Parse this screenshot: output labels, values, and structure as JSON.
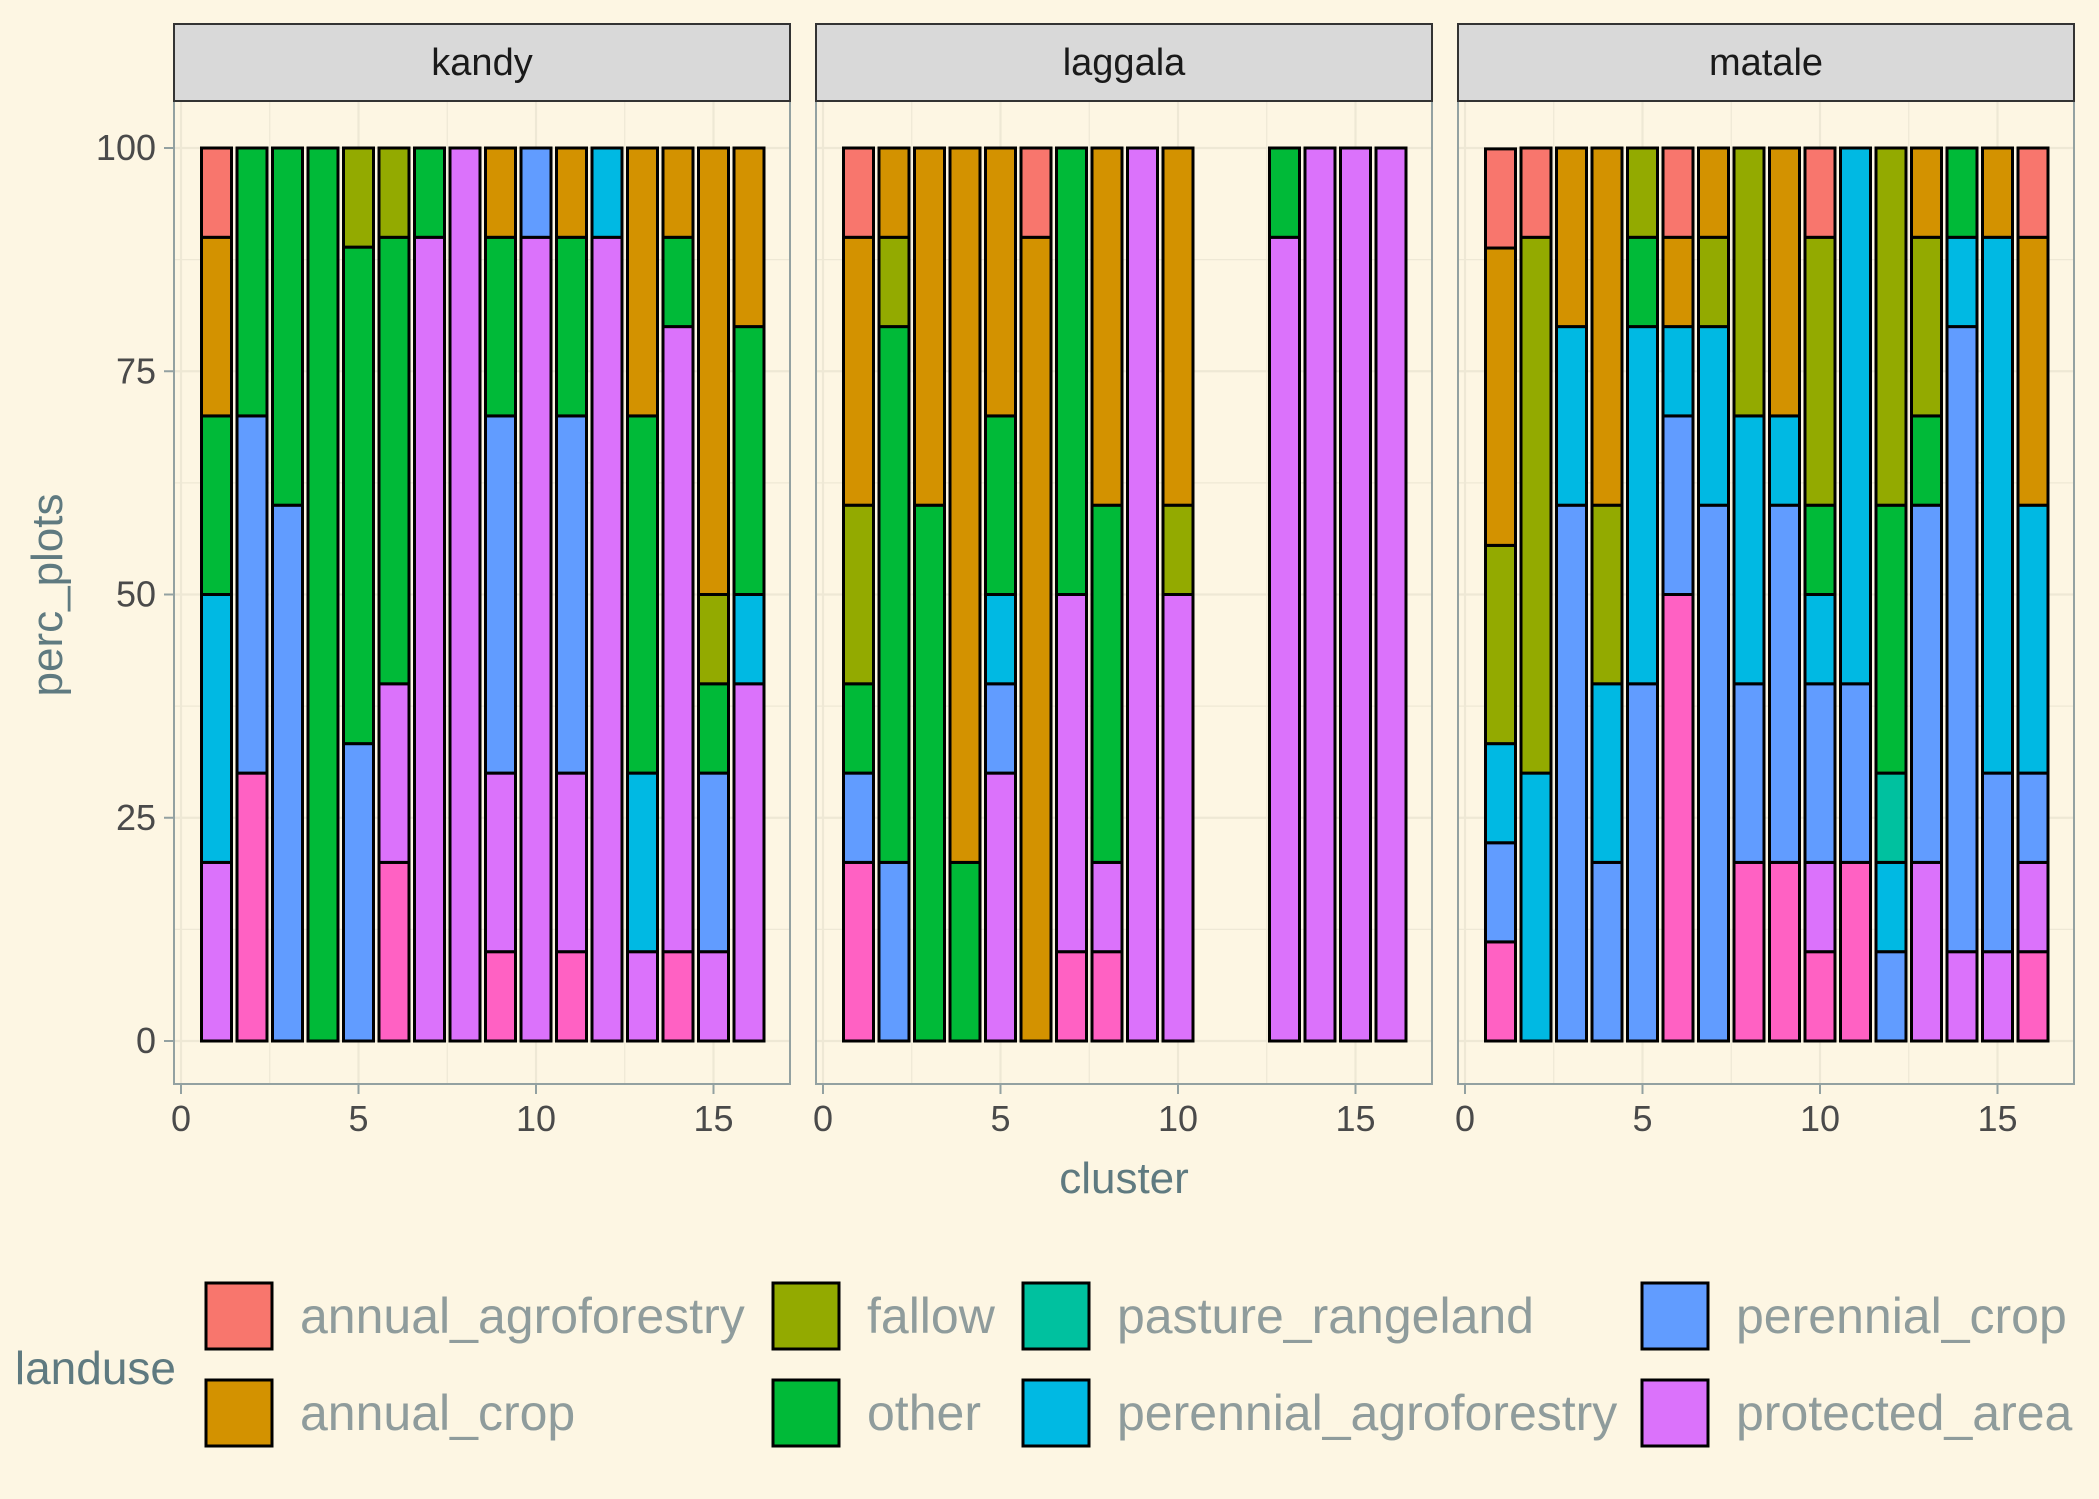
{
  "chart_data": {
    "type": "bar",
    "stacked": true,
    "position": "fill",
    "xlabel": "cluster",
    "ylabel": "perc_plots",
    "ylim": [
      0,
      100
    ],
    "yticks": [
      0,
      25,
      50,
      75,
      100
    ],
    "xticks": [
      0,
      5,
      10,
      15
    ],
    "xlim": [
      0,
      17
    ],
    "grid": true,
    "legend": {
      "title": "landuse",
      "placement": "bottom",
      "entries": [
        {
          "name": "annual_agroforestry",
          "color": "#F8766D"
        },
        {
          "name": "annual_crop",
          "color": "#D39200"
        },
        {
          "name": "fallow",
          "color": "#93AA00"
        },
        {
          "name": "other",
          "color": "#00BA38"
        },
        {
          "name": "pasture_rangeland",
          "color": "#00C19F"
        },
        {
          "name": "perennial_agroforestry",
          "color": "#00B9E3"
        },
        {
          "name": "perennial_crop",
          "color": "#619CFF"
        },
        {
          "name": "protected_area",
          "color": "#DB72FB"
        }
      ],
      "extra_fill_color": "#FF61C3"
    },
    "stack_order_bottom_to_top": [
      "pink",
      "protected_area",
      "perennial_crop",
      "perennial_agroforestry",
      "pasture_rangeland",
      "other",
      "fallow",
      "annual_crop",
      "annual_agroforestry"
    ],
    "panels": [
      {
        "name": "kandy",
        "bars": [
          {
            "x": 1,
            "pink": 0,
            "protected_area": 20,
            "perennial_agroforestry": 30,
            "other": 20,
            "annual_crop": 20,
            "annual_agroforestry": 10
          },
          {
            "x": 2,
            "pink": 30,
            "perennial_crop": 40,
            "other": 30
          },
          {
            "x": 3,
            "perennial_crop": 60,
            "other": 40
          },
          {
            "x": 4,
            "other": 100
          },
          {
            "x": 5,
            "perennial_crop": 33.3,
            "other": 55.6,
            "fallow": 11.1
          },
          {
            "x": 6,
            "pink": 20,
            "protected_area": 20,
            "other": 50,
            "fallow": 10
          },
          {
            "x": 7,
            "protected_area": 90,
            "other": 10
          },
          {
            "x": 8,
            "protected_area": 100
          },
          {
            "x": 9,
            "pink": 10,
            "protected_area": 20,
            "perennial_crop": 40,
            "other": 20,
            "annual_crop": 10
          },
          {
            "x": 10,
            "protected_area": 90,
            "perennial_crop": 10
          },
          {
            "x": 11,
            "pink": 10,
            "protected_area": 20,
            "perennial_crop": 40,
            "other": 20,
            "annual_crop": 10
          },
          {
            "x": 12,
            "protected_area": 90,
            "perennial_agroforestry": 10
          },
          {
            "x": 13,
            "protected_area": 10,
            "perennial_agroforestry": 20,
            "other": 40,
            "annual_crop": 30
          },
          {
            "x": 14,
            "pink": 10,
            "protected_area": 70,
            "other": 10,
            "annual_crop": 10
          },
          {
            "x": 15,
            "protected_area": 10,
            "perennial_crop": 20,
            "other": 10,
            "fallow": 10,
            "annual_crop": 50
          },
          {
            "x": 16,
            "protected_area": 40,
            "perennial_agroforestry": 10,
            "other": 30,
            "annual_crop": 20
          }
        ]
      },
      {
        "name": "laggala",
        "bars": [
          {
            "x": 1,
            "pink": 20,
            "perennial_crop": 10,
            "other": 10,
            "fallow": 20,
            "annual_crop": 30,
            "annual_agroforestry": 10
          },
          {
            "x": 2,
            "perennial_crop": 20,
            "other": 60,
            "fallow": 10,
            "annual_crop": 10
          },
          {
            "x": 3,
            "other": 60,
            "annual_crop": 40
          },
          {
            "x": 4,
            "other": 20,
            "annual_crop": 80
          },
          {
            "x": 5,
            "protected_area": 30,
            "perennial_crop": 10,
            "perennial_agroforestry": 10,
            "other": 20,
            "annual_crop": 30
          },
          {
            "x": 6,
            "annual_crop": 90,
            "annual_agroforestry": 10
          },
          {
            "x": 7,
            "pink": 10,
            "protected_area": 40,
            "other": 50
          },
          {
            "x": 8,
            "pink": 10,
            "protected_area": 10,
            "other": 40,
            "annual_crop": 40
          },
          {
            "x": 9,
            "protected_area": 100
          },
          {
            "x": 10,
            "protected_area": 50,
            "fallow": 10,
            "annual_crop": 40
          },
          {
            "x": 13,
            "protected_area": 90,
            "other": 10
          },
          {
            "x": 14,
            "protected_area": 100
          },
          {
            "x": 15,
            "protected_area": 100
          },
          {
            "x": 16,
            "protected_area": 100
          }
        ]
      },
      {
        "name": "matale",
        "bars": [
          {
            "x": 1,
            "pink": 11.1,
            "perennial_crop": 11.1,
            "perennial_agroforestry": 11.1,
            "fallow": 22.2,
            "annual_crop": 33.3,
            "annual_agroforestry": 11.1
          },
          {
            "x": 2,
            "perennial_agroforestry": 30,
            "fallow": 60,
            "annual_agroforestry": 10
          },
          {
            "x": 3,
            "perennial_crop": 60,
            "perennial_agroforestry": 20,
            "annual_crop": 20
          },
          {
            "x": 4,
            "perennial_crop": 20,
            "perennial_agroforestry": 20,
            "fallow": 20,
            "annual_crop": 40
          },
          {
            "x": 5,
            "perennial_crop": 40,
            "perennial_agroforestry": 40,
            "other": 10,
            "fallow": 10
          },
          {
            "x": 6,
            "pink": 50,
            "perennial_crop": 20,
            "perennial_agroforestry": 10,
            "annual_crop": 10,
            "annual_agroforestry": 10
          },
          {
            "x": 7,
            "perennial_crop": 60,
            "perennial_agroforestry": 20,
            "fallow": 10,
            "annual_crop": 10
          },
          {
            "x": 8,
            "pink": 20,
            "perennial_crop": 20,
            "perennial_agroforestry": 30,
            "fallow": 30
          },
          {
            "x": 9,
            "pink": 20,
            "perennial_crop": 40,
            "perennial_agroforestry": 10,
            "annual_crop": 30
          },
          {
            "x": 10,
            "pink": 10,
            "protected_area": 10,
            "perennial_crop": 20,
            "perennial_agroforestry": 10,
            "other": 10,
            "fallow": 30,
            "annual_agroforestry": 10
          },
          {
            "x": 11,
            "pink": 20,
            "perennial_crop": 20,
            "perennial_agroforestry": 60
          },
          {
            "x": 12,
            "perennial_crop": 10,
            "perennial_agroforestry": 10,
            "pasture_rangeland": 10,
            "other": 30,
            "fallow": 40
          },
          {
            "x": 13,
            "protected_area": 20,
            "perennial_crop": 40,
            "other": 10,
            "fallow": 20,
            "annual_crop": 10
          },
          {
            "x": 14,
            "protected_area": 10,
            "perennial_crop": 70,
            "perennial_agroforestry": 10,
            "other": 10
          },
          {
            "x": 15,
            "protected_area": 10,
            "perennial_crop": 20,
            "perennial_agroforestry": 60,
            "annual_crop": 10
          },
          {
            "x": 16,
            "pink": 10,
            "protected_area": 10,
            "perennial_crop": 10,
            "perennial_agroforestry": 30,
            "annual_crop": 30,
            "annual_agroforestry": 10
          }
        ]
      }
    ]
  }
}
